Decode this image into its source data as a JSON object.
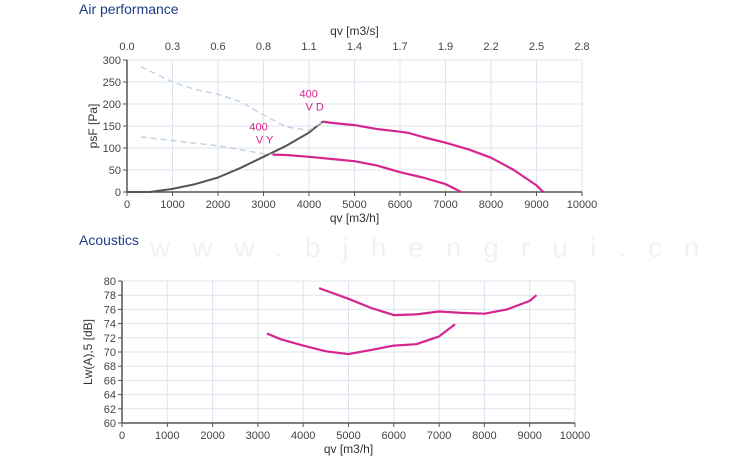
{
  "titles": {
    "air": "Air performance",
    "acoustics": "Acoustics"
  },
  "watermark": "www.bjhengrui.cn",
  "colors": {
    "curve": "#d6258f",
    "system": "#555555",
    "dashed": "#c5d3e3",
    "grid": "#dde4ee",
    "title": "#1f3c88"
  },
  "chart_data": [
    {
      "type": "line",
      "title": "Air performance",
      "xlabel": "qv [m3/h]",
      "x2label": "qv [m3/s]",
      "ylabel": "psF [Pa]",
      "xlim": [
        0,
        10000
      ],
      "ylim": [
        0,
        300
      ],
      "xticks": [
        "0",
        "1000",
        "2000",
        "3000",
        "4000",
        "5000",
        "6000",
        "7000",
        "8000",
        "9000",
        "10000"
      ],
      "x2ticks": [
        "0.0",
        "0.3",
        "0.6",
        "0.8",
        "1.1",
        "1.4",
        "1.7",
        "1.9",
        "2.2",
        "2.5",
        "2.8"
      ],
      "yticks": [
        "0",
        "50",
        "100",
        "150",
        "200",
        "250",
        "300"
      ],
      "grid": true,
      "series": [
        {
          "name": "400 VD",
          "label1": "400",
          "label2": "V D",
          "style": "solid",
          "points": [
            [
              4300,
              160
            ],
            [
              4500,
              157
            ],
            [
              5000,
              152
            ],
            [
              5500,
              143
            ],
            [
              6000,
              137
            ],
            [
              6200,
              134
            ],
            [
              6500,
              125
            ],
            [
              7000,
              112
            ],
            [
              7500,
              97
            ],
            [
              8000,
              78
            ],
            [
              8500,
              50
            ],
            [
              9000,
              15
            ],
            [
              9150,
              0
            ]
          ]
        },
        {
          "name": "400 VY",
          "label1": "400",
          "label2": "V Y",
          "style": "solid",
          "points": [
            [
              3200,
              85
            ],
            [
              3500,
              84
            ],
            [
              4000,
              80
            ],
            [
              4500,
              75
            ],
            [
              5000,
              70
            ],
            [
              5500,
              60
            ],
            [
              6000,
              45
            ],
            [
              6500,
              33
            ],
            [
              7000,
              18
            ],
            [
              7350,
              0
            ]
          ]
        },
        {
          "name": "system curve",
          "style": "system",
          "points": [
            [
              0,
              0
            ],
            [
              500,
              0
            ],
            [
              1000,
              7
            ],
            [
              1500,
              18
            ],
            [
              2000,
              33
            ],
            [
              2500,
              55
            ],
            [
              3000,
              80
            ],
            [
              3500,
              105
            ],
            [
              4000,
              135
            ],
            [
              4300,
              160
            ]
          ]
        },
        {
          "name": "VD extension",
          "style": "dashed",
          "points": [
            [
              300,
              285
            ],
            [
              1000,
              250
            ],
            [
              1500,
              233
            ],
            [
              2000,
              222
            ],
            [
              2500,
              205
            ],
            [
              3000,
              175
            ],
            [
              3500,
              148
            ],
            [
              4000,
              140
            ],
            [
              4300,
              160
            ]
          ]
        },
        {
          "name": "VY extension",
          "style": "dashed",
          "points": [
            [
              300,
              125
            ],
            [
              1000,
              117
            ],
            [
              2000,
              105
            ],
            [
              3000,
              87
            ],
            [
              3200,
              85
            ]
          ]
        }
      ]
    },
    {
      "type": "line",
      "title": "Acoustics",
      "xlabel": "qv [m3/h]",
      "ylabel": "Lw(A),5 [dB]",
      "xlim": [
        0,
        10000
      ],
      "ylim": [
        60,
        80
      ],
      "xticks": [
        "0",
        "1000",
        "2000",
        "3000",
        "4000",
        "5000",
        "6000",
        "7000",
        "8000",
        "9000",
        "10000"
      ],
      "yticks": [
        "60",
        "62",
        "64",
        "66",
        "68",
        "70",
        "72",
        "74",
        "76",
        "78",
        "80"
      ],
      "grid": true,
      "series": [
        {
          "name": "400 VD",
          "style": "solid",
          "points": [
            [
              4350,
              79
            ],
            [
              5000,
              77.5
            ],
            [
              5500,
              76.2
            ],
            [
              6000,
              75.2
            ],
            [
              6500,
              75.3
            ],
            [
              7000,
              75.7
            ],
            [
              7500,
              75.5
            ],
            [
              8000,
              75.4
            ],
            [
              8500,
              76
            ],
            [
              9000,
              77.2
            ],
            [
              9150,
              78
            ]
          ]
        },
        {
          "name": "400 VY",
          "style": "solid",
          "points": [
            [
              3200,
              72.6
            ],
            [
              3500,
              71.8
            ],
            [
              4000,
              70.9
            ],
            [
              4500,
              70.1
            ],
            [
              5000,
              69.7
            ],
            [
              5500,
              70.3
            ],
            [
              6000,
              70.9
            ],
            [
              6500,
              71.1
            ],
            [
              7000,
              72.2
            ],
            [
              7350,
              73.9
            ]
          ]
        }
      ]
    }
  ]
}
